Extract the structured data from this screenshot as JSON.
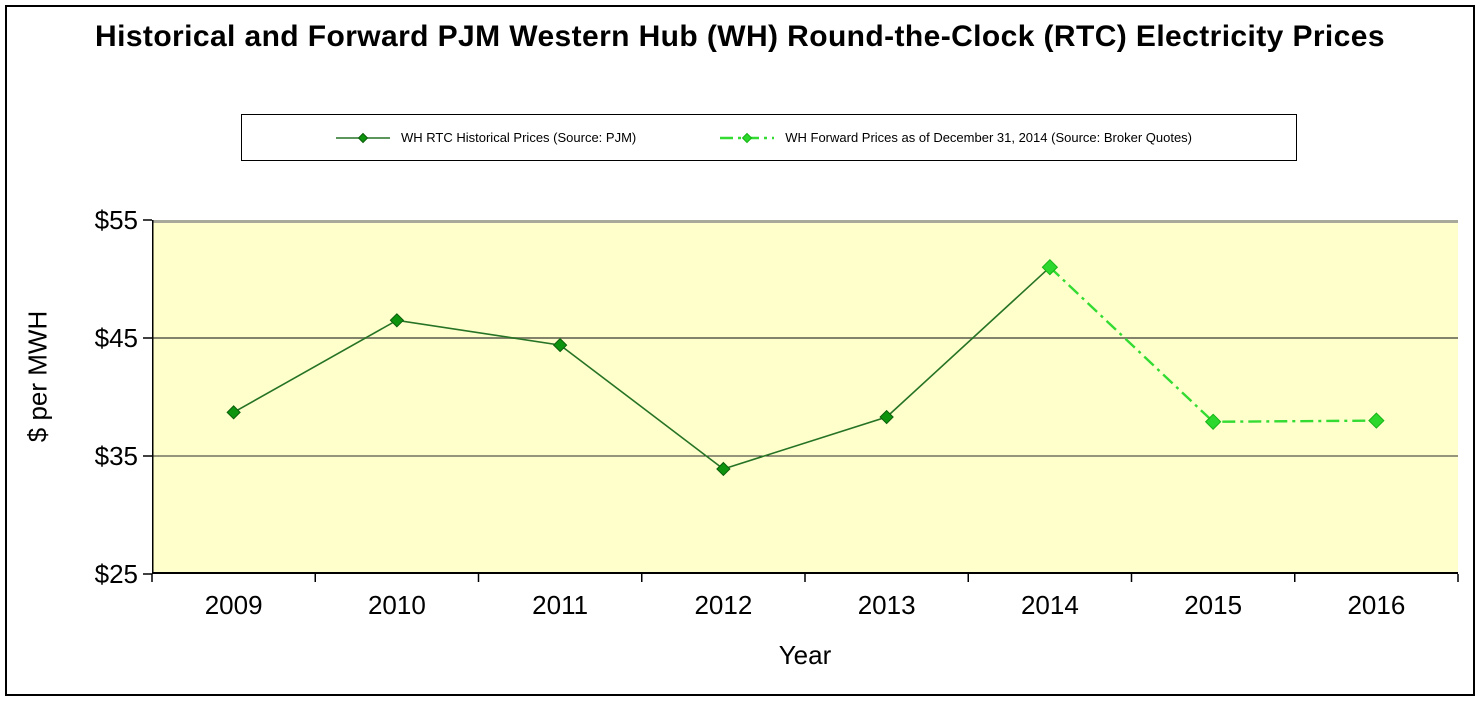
{
  "chart_data": {
    "type": "line",
    "title": "Historical and Forward PJM Western Hub (WH) Round-the-Clock (RTC) Electricity Prices",
    "xlabel": "Year",
    "ylabel": "$ per MWH",
    "categories": [
      "2009",
      "2010",
      "2011",
      "2012",
      "2013",
      "2014",
      "2015",
      "2016"
    ],
    "ylim": [
      25,
      55
    ],
    "yticks": [
      {
        "value": 55,
        "label": "$55"
      },
      {
        "value": 45,
        "label": "$45"
      },
      {
        "value": 35,
        "label": "$35"
      },
      {
        "value": 25,
        "label": "$25"
      }
    ],
    "gridlines": [
      {
        "value": 45,
        "color": "#83836B",
        "width": 2
      },
      {
        "value": 35,
        "color": "#2B2B2B",
        "width": 1
      }
    ],
    "plot_background": "#FFFFCC",
    "legend_position": "top",
    "series": [
      {
        "name": "WH RTC Historical Prices (Source: PJM)",
        "x": [
          "2009",
          "2010",
          "2011",
          "2012",
          "2013",
          "2014"
        ],
        "values": [
          38.7,
          46.5,
          44.4,
          33.9,
          38.3,
          51.0
        ],
        "line_style": "solid",
        "dash_pattern": "",
        "line_color": "#267326",
        "line_width": 1.6,
        "marker": "diamond",
        "marker_color": "#0D930D",
        "marker_edge": "#0B5E0B",
        "marker_size": 13
      },
      {
        "name": "WH Forward Prices as of December 31, 2014 (Source: Broker Quotes)",
        "x": [
          "2014",
          "2015",
          "2016"
        ],
        "values": [
          51.0,
          37.9,
          38.0
        ],
        "line_style": "dash-dot",
        "dash_pattern": "13 5 3 5",
        "line_color": "#33DB33",
        "line_width": 2.4,
        "marker": "diamond",
        "marker_color": "#2BD82B",
        "marker_edge": "#17B517",
        "marker_size": 15
      }
    ],
    "axis_colors": {
      "top_border": "#A9A99B",
      "axis_line": "#000000",
      "tick": "#000000"
    }
  }
}
